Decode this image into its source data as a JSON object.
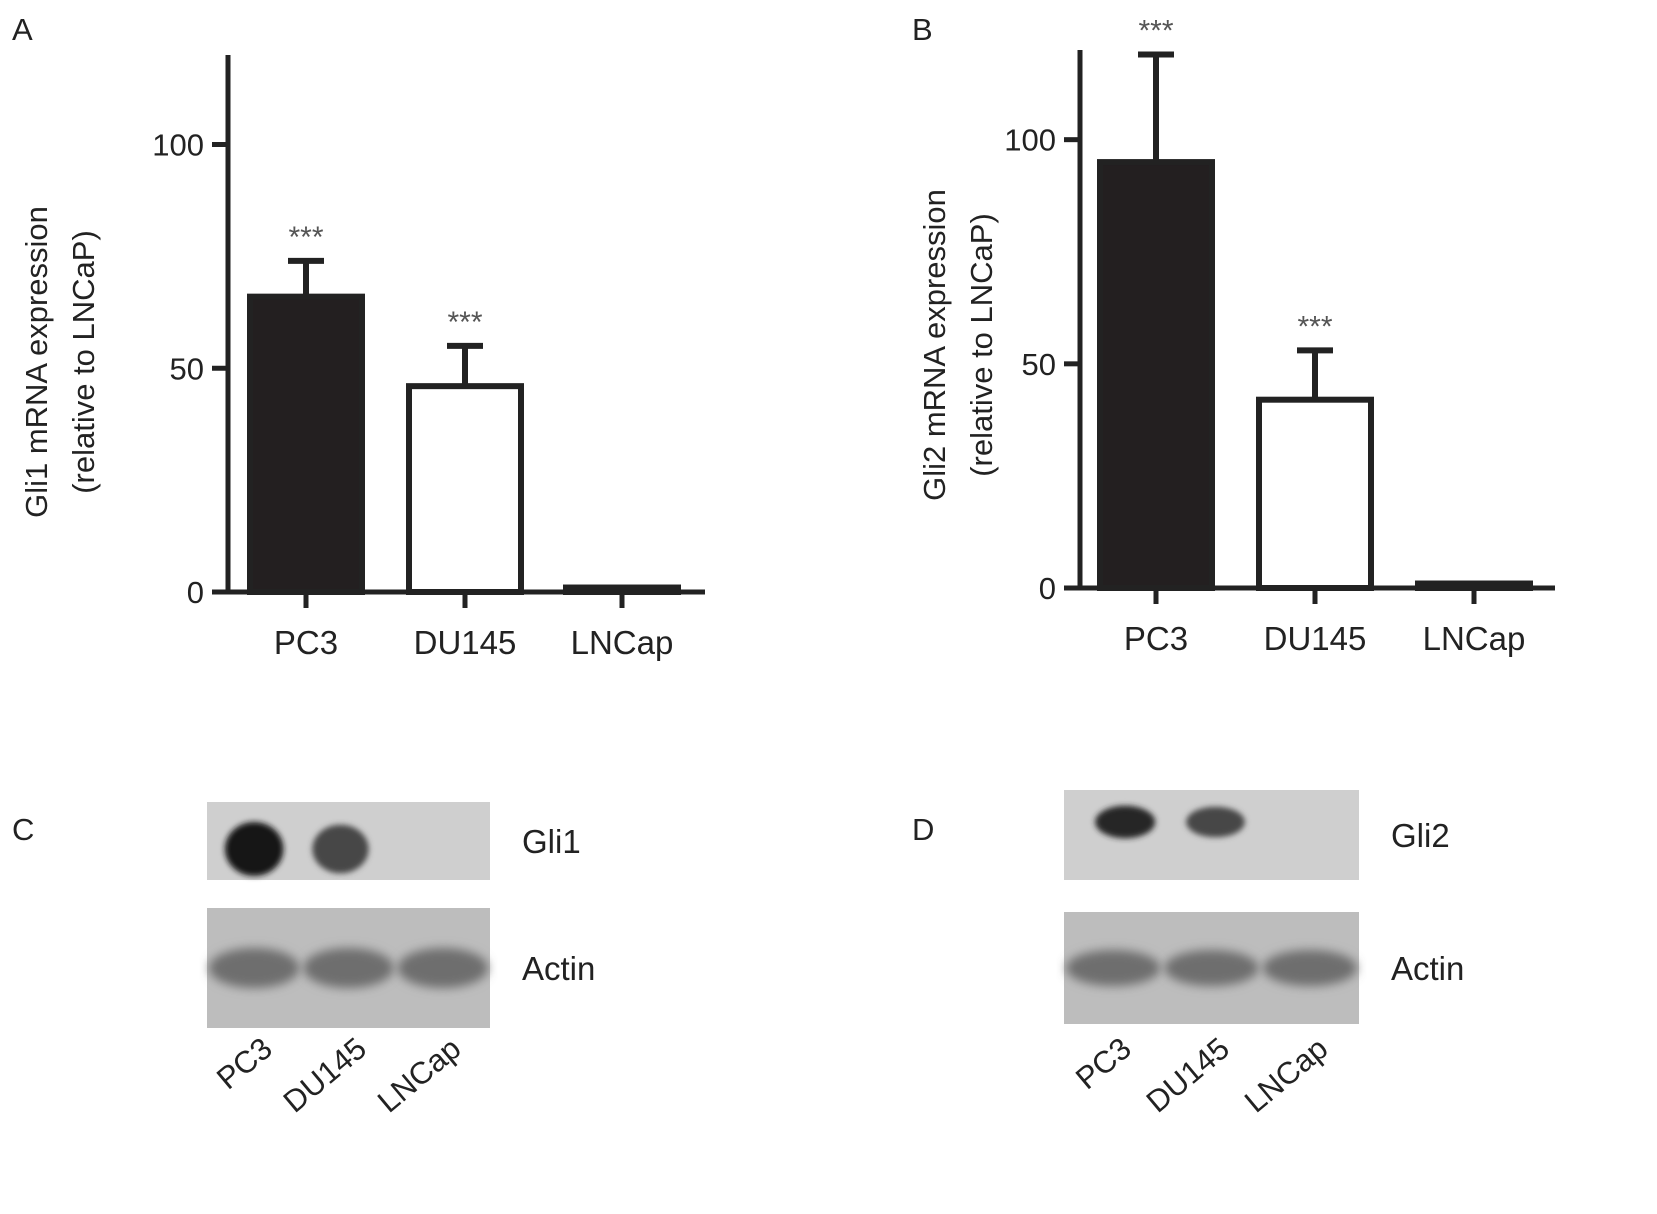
{
  "panel_labels": {
    "a": "A",
    "b": "B",
    "c": "C",
    "d": "D"
  },
  "colors": {
    "ink": "#222222",
    "bar_dark": "#231f20",
    "bar_light": "#ffffff",
    "star": "#555555"
  },
  "chart_data": [
    {
      "type": "bar",
      "panel": "A",
      "categories": [
        "PC3",
        "DU145",
        "LNCap"
      ],
      "values": [
        66,
        46,
        1
      ],
      "errors": [
        8,
        9,
        0
      ],
      "fills": [
        "dark",
        "light",
        "light"
      ],
      "annotations": [
        "***",
        "***",
        ""
      ],
      "ylabel_lines": [
        "Gli1 mRNA expression",
        "(relative to LNCaP)"
      ],
      "xlabel": "",
      "ylim": [
        0,
        120
      ],
      "yticks": [
        0,
        50,
        100
      ],
      "grid": false,
      "legend": "none"
    },
    {
      "type": "bar",
      "panel": "B",
      "categories": [
        "PC3",
        "DU145",
        "LNCap"
      ],
      "values": [
        95,
        42,
        1
      ],
      "errors": [
        24,
        11,
        0
      ],
      "fills": [
        "dark",
        "light",
        "light"
      ],
      "annotations": [
        "***",
        "***",
        ""
      ],
      "ylabel_lines": [
        "Gli2 mRNA expression",
        "(relative to LNCaP)"
      ],
      "xlabel": "",
      "ylim": [
        0,
        120
      ],
      "yticks": [
        0,
        50,
        100
      ],
      "grid": false,
      "legend": "none"
    }
  ],
  "blots": [
    {
      "panel": "C",
      "lanes": [
        "PC3",
        "DU145",
        "LNCap"
      ],
      "rows": [
        {
          "label": "Gli1",
          "intensity": [
            1.0,
            0.75,
            0.0
          ]
        },
        {
          "label": "Actin",
          "intensity": [
            0.55,
            0.55,
            0.55
          ]
        }
      ]
    },
    {
      "panel": "D",
      "lanes": [
        "PC3",
        "DU145",
        "LNCap"
      ],
      "rows": [
        {
          "label": "Gli2",
          "intensity": [
            0.9,
            0.75,
            0.0
          ]
        },
        {
          "label": "Actin",
          "intensity": [
            0.55,
            0.55,
            0.55
          ]
        }
      ]
    }
  ]
}
